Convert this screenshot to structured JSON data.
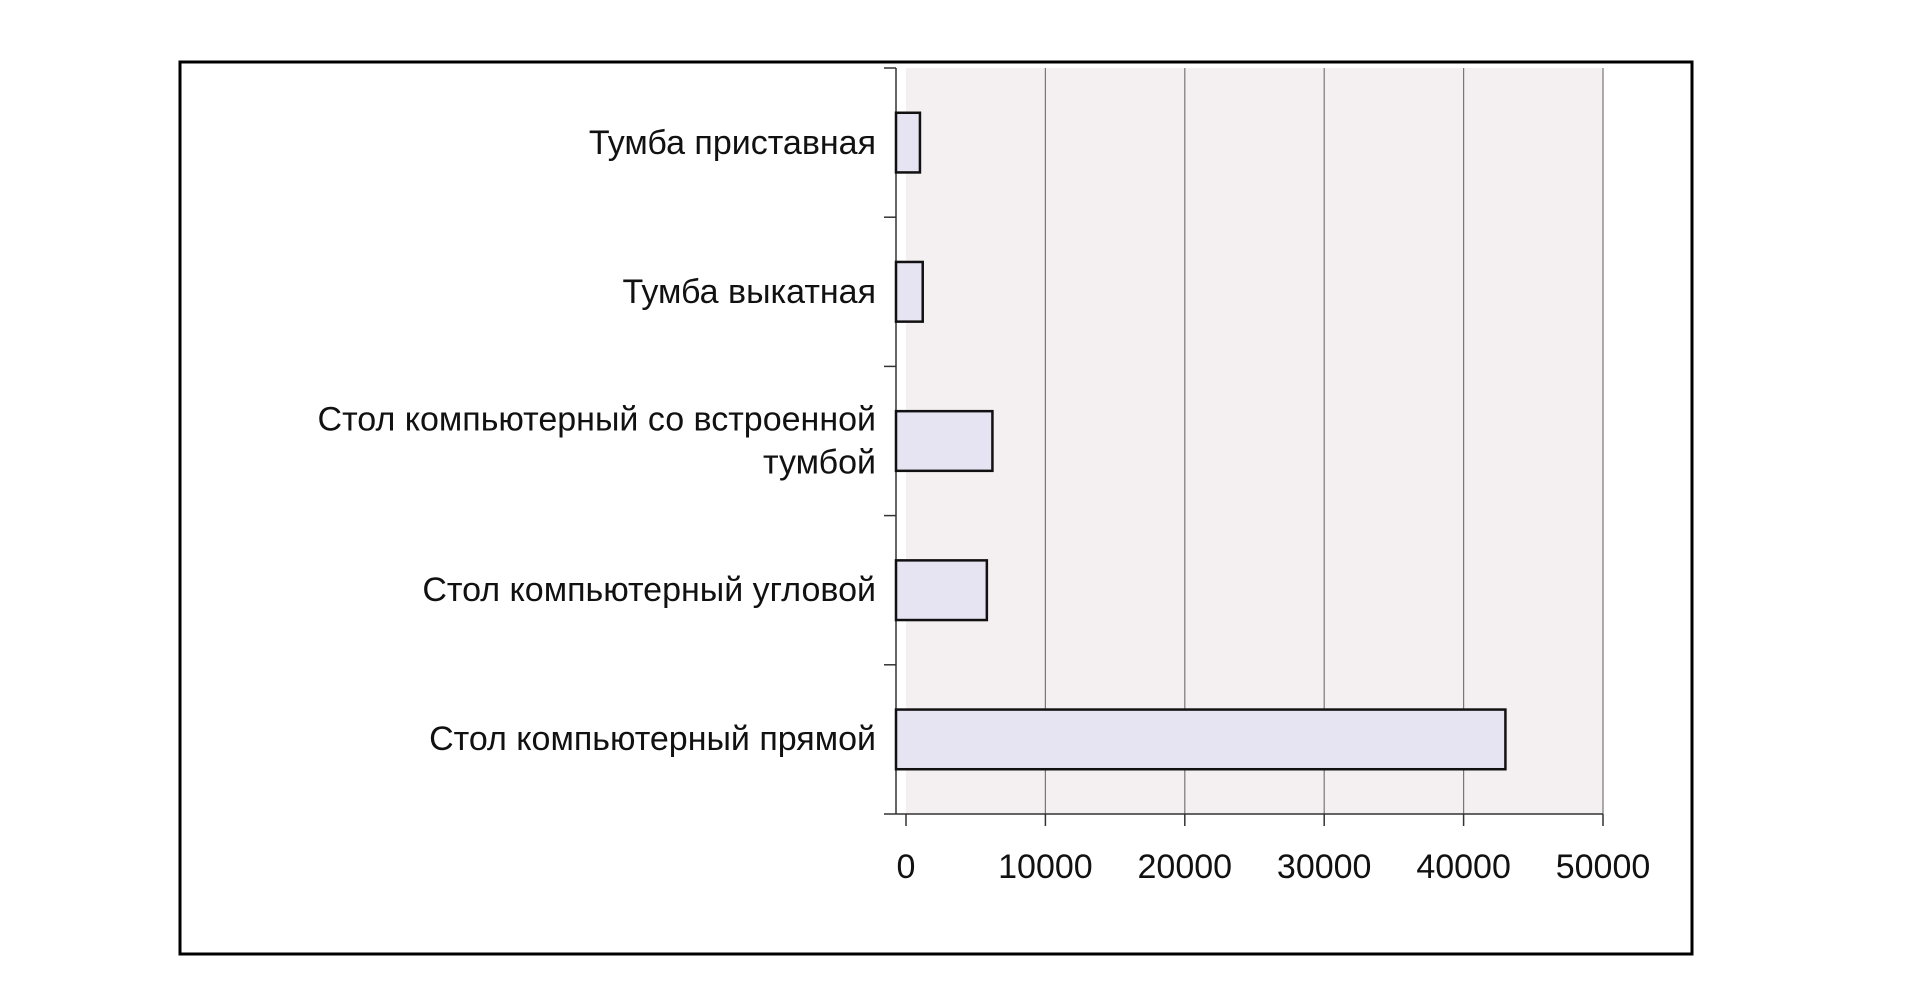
{
  "chart_data": {
    "type": "barh",
    "categories": [
      "Тумба приставная",
      "Тумба выкатная",
      "Стол компьютерный со встроенной тумбой",
      "Стол компьютерный угловой",
      "Стол компьютерный прямой"
    ],
    "values": [
      1000,
      1200,
      6200,
      5800,
      43000
    ],
    "color": "#e6e3f3",
    "xlim": [
      0,
      50000
    ],
    "xticks": [
      0,
      10000,
      20000,
      30000,
      40000,
      50000
    ],
    "grid": true
  }
}
